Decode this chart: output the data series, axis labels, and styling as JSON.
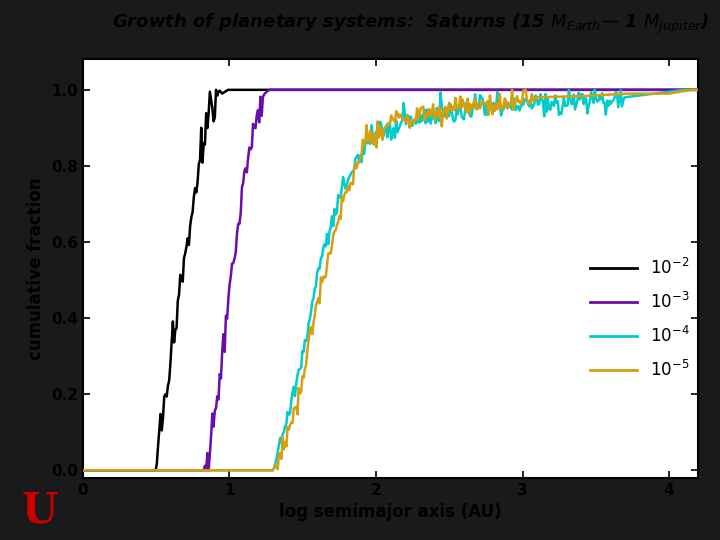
{
  "title_main": "Growth of planetary systems:  Saturns (15 M",
  "title_sub1": "Earth",
  "title_mid": "— 1 M",
  "title_sub2": "Jupiter",
  "title_end": ")",
  "xlabel": "log semimajor axis (AU)",
  "ylabel": "cumulative fraction",
  "xlim": [
    0,
    4.2
  ],
  "ylim": [
    -0.02,
    1.08
  ],
  "xticks": [
    0,
    1,
    2,
    3,
    4
  ],
  "yticks": [
    0.0,
    0.2,
    0.4,
    0.6,
    0.8,
    1.0
  ],
  "background_color": "#ffffff",
  "border_color": "#000000",
  "outer_bg": "#1a1a1a",
  "logo_color": "#cc0000",
  "lines": [
    {
      "label": "$10^{-2}$",
      "color": "#000000",
      "lw": 1.8,
      "seed": 42,
      "x_zero_end": 0.5,
      "x_rise_start": 0.51,
      "x_rise_end": 1.03,
      "x_one_start": 1.03,
      "noise_scale": 0.025
    },
    {
      "label": "$10^{-3}$",
      "color": "#6a0dad",
      "lw": 1.8,
      "seed": 7,
      "x_zero_end": 0.83,
      "x_rise_start": 0.84,
      "x_rise_end": 1.3,
      "x_one_start": 1.3,
      "noise_scale": 0.025
    },
    {
      "label": "$10^{-4}$",
      "color": "#00cccc",
      "lw": 1.8,
      "seed": 13,
      "x_zero_end": 1.3,
      "x_rise_start": 1.31,
      "x_rise_end": 4.1,
      "x_one_start": 4.1,
      "noise_scale": 0.015
    },
    {
      "label": "$10^{-5}$",
      "color": "#d4a010",
      "lw": 1.8,
      "seed": 99,
      "x_zero_end": 1.3,
      "x_rise_start": 1.31,
      "x_rise_end": 4.15,
      "x_one_start": 4.15,
      "noise_scale": 0.015
    }
  ],
  "title_fontsize": 13,
  "axis_fontsize": 12,
  "tick_fontsize": 11,
  "legend_fontsize": 12
}
